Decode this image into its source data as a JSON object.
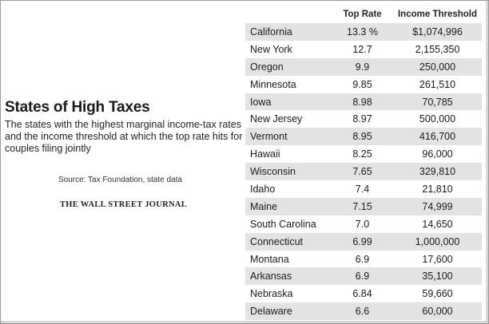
{
  "title": "States of High Taxes",
  "subtitle": "The states with the highest marginal income-tax rates and the income threshold at which the top rate hits for couples filing jointly",
  "source": "Source: Tax Foundation, state data",
  "logo_text": "THE WALL STREET JOURNAL",
  "colors": {
    "row_shade": "#e3e3e3",
    "text": "#1a1a1a"
  },
  "chart_data": {
    "type": "table",
    "title": "States of High Taxes",
    "columns": [
      "",
      "Top Rate",
      "Income Threshold"
    ],
    "rows": [
      {
        "state": "California",
        "rate": "13.3 %",
        "threshold": "$1,074,996"
      },
      {
        "state": "New York",
        "rate": "12.7",
        "threshold": "2,155,350"
      },
      {
        "state": "Oregon",
        "rate": "9.9",
        "threshold": "250,000"
      },
      {
        "state": "Minnesota",
        "rate": "9.85",
        "threshold": "261,510"
      },
      {
        "state": "Iowa",
        "rate": "8.98",
        "threshold": "70,785"
      },
      {
        "state": "New Jersey",
        "rate": "8.97",
        "threshold": "500,000"
      },
      {
        "state": "Vermont",
        "rate": "8.95",
        "threshold": "416,700"
      },
      {
        "state": "Hawaii",
        "rate": "8.25",
        "threshold": "96,000"
      },
      {
        "state": "Wisconsin",
        "rate": "7.65",
        "threshold": "329,810"
      },
      {
        "state": "Idaho",
        "rate": "7.4",
        "threshold": "21,810"
      },
      {
        "state": "Maine",
        "rate": "7.15",
        "threshold": "74,999"
      },
      {
        "state": "South Carolina",
        "rate": "7.0",
        "threshold": "14,650"
      },
      {
        "state": "Connecticut",
        "rate": "6.99",
        "threshold": "1,000,000"
      },
      {
        "state": "Montana",
        "rate": "6.9",
        "threshold": "17,600"
      },
      {
        "state": "Arkansas",
        "rate": "6.9",
        "threshold": "35,100"
      },
      {
        "state": "Nebraska",
        "rate": "6.84",
        "threshold": "59,660"
      },
      {
        "state": "Delaware",
        "rate": "6.6",
        "threshold": "60,000"
      }
    ]
  }
}
